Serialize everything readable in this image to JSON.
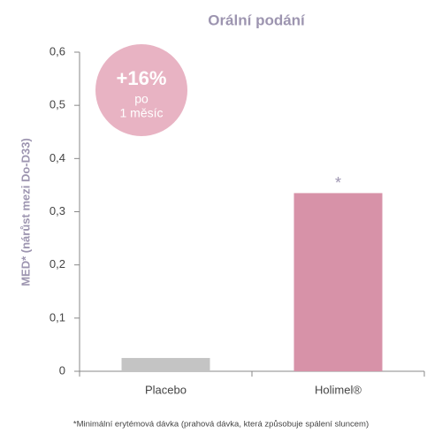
{
  "chart_data": {
    "type": "bar",
    "title": "Orální podání",
    "y_label": "MED* (nárůst mezi Do-D33)",
    "categories": [
      "Placebo",
      "Holimel®"
    ],
    "values": [
      0.025,
      0.335
    ],
    "colors": [
      "#c4c4c4",
      "#d792a8"
    ],
    "ylim": [
      0,
      0.6
    ],
    "yticks": [
      0,
      {
        "value": 0.1,
        "label": "0,1"
      },
      {
        "value": 0.2,
        "label": "0,2"
      },
      {
        "value": 0.3,
        "label": "0,3"
      },
      {
        "value": 0.4,
        "label": "0,4"
      },
      {
        "value": 0.5,
        "label": "0,5"
      },
      {
        "value": 0.6,
        "label": "0,6"
      }
    ],
    "badge": {
      "big": "+16%",
      "line1": "po",
      "line2": "1 měsíc",
      "color": "#e8b3c3"
    },
    "significance": "*",
    "footnote": "*Minimální erytémová dávka (prahová dávka, která způsobuje spálení sluncem)"
  }
}
